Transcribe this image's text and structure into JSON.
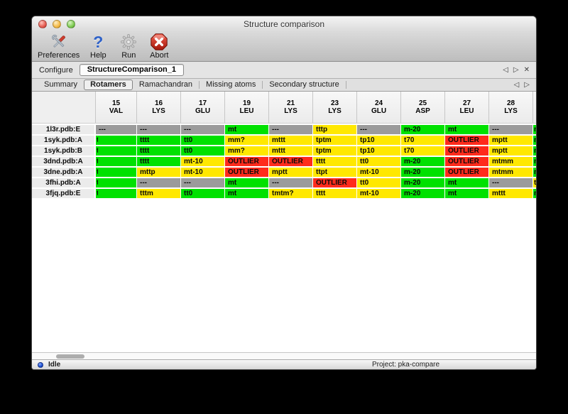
{
  "window_title": "Structure comparison",
  "toolbar": {
    "items": [
      {
        "label": "Preferences"
      },
      {
        "label": "Help"
      },
      {
        "label": "Run"
      },
      {
        "label": "Abort"
      }
    ]
  },
  "configure": {
    "label": "Configure",
    "value": "StructureComparison_1",
    "prev": "◁",
    "next": "▷",
    "close": "✕"
  },
  "tabs": {
    "items": [
      {
        "label": "Summary",
        "selected": false
      },
      {
        "label": "Rotamers",
        "selected": true
      },
      {
        "label": "Ramachandran",
        "selected": false
      },
      {
        "label": "Missing atoms",
        "selected": false
      },
      {
        "label": "Secondary structure",
        "selected": false
      }
    ],
    "prev": "◁",
    "next": "▷"
  },
  "table": {
    "columns": [
      {
        "num": "15",
        "res": "VAL"
      },
      {
        "num": "16",
        "res": "LYS"
      },
      {
        "num": "17",
        "res": "GLU"
      },
      {
        "num": "19",
        "res": "LEU"
      },
      {
        "num": "21",
        "res": "LYS"
      },
      {
        "num": "23",
        "res": "LYS"
      },
      {
        "num": "24",
        "res": "GLU"
      },
      {
        "num": "25",
        "res": "ASP"
      },
      {
        "num": "27",
        "res": "LEU"
      },
      {
        "num": "28",
        "res": "LYS"
      }
    ],
    "rows": [
      {
        "label": "1l3r.pdb:E",
        "cells": [
          {
            "t": "---",
            "c": "gray"
          },
          {
            "t": "---",
            "c": "gray"
          },
          {
            "t": "---",
            "c": "gray"
          },
          {
            "t": "mt",
            "c": "green"
          },
          {
            "t": "---",
            "c": "gray"
          },
          {
            "t": "tttp",
            "c": "yellow"
          },
          {
            "t": "---",
            "c": "gray"
          },
          {
            "t": "m-20",
            "c": "green"
          },
          {
            "t": "mt",
            "c": "green"
          },
          {
            "t": "---",
            "c": "gray"
          }
        ],
        "edge": {
          "t": "m",
          "c": "green"
        }
      },
      {
        "label": "1syk.pdb:A",
        "cells": [
          {
            "t": "t",
            "c": "green",
            "clip": true
          },
          {
            "t": "tttt",
            "c": "green"
          },
          {
            "t": "tt0",
            "c": "green"
          },
          {
            "t": "mm?",
            "c": "yellow"
          },
          {
            "t": "mttt",
            "c": "yellow"
          },
          {
            "t": "tptm",
            "c": "yellow"
          },
          {
            "t": "tp10",
            "c": "yellow"
          },
          {
            "t": "t70",
            "c": "yellow"
          },
          {
            "t": "OUTLIER",
            "c": "red"
          },
          {
            "t": "mptt",
            "c": "yellow"
          }
        ],
        "edge": {
          "t": "m",
          "c": "green"
        }
      },
      {
        "label": "1syk.pdb:B",
        "cells": [
          {
            "t": "t",
            "c": "green",
            "clip": true
          },
          {
            "t": "tttt",
            "c": "green"
          },
          {
            "t": "tt0",
            "c": "green"
          },
          {
            "t": "mm?",
            "c": "yellow"
          },
          {
            "t": "mttt",
            "c": "yellow"
          },
          {
            "t": "tptm",
            "c": "yellow"
          },
          {
            "t": "tp10",
            "c": "yellow"
          },
          {
            "t": "t70",
            "c": "yellow"
          },
          {
            "t": "OUTLIER",
            "c": "red"
          },
          {
            "t": "mptt",
            "c": "yellow"
          }
        ],
        "edge": {
          "t": "m",
          "c": "green"
        }
      },
      {
        "label": "3dnd.pdb:A",
        "cells": [
          {
            "t": "t",
            "c": "green",
            "clip": true
          },
          {
            "t": "tttt",
            "c": "green"
          },
          {
            "t": "mt-10",
            "c": "yellow"
          },
          {
            "t": "OUTLIER",
            "c": "red"
          },
          {
            "t": "OUTLIER",
            "c": "red"
          },
          {
            "t": "tttt",
            "c": "yellow"
          },
          {
            "t": "tt0",
            "c": "yellow"
          },
          {
            "t": "m-20",
            "c": "green"
          },
          {
            "t": "OUTLIER",
            "c": "red"
          },
          {
            "t": "mtmm",
            "c": "yellow"
          }
        ],
        "edge": {
          "t": "m",
          "c": "green"
        }
      },
      {
        "label": "3dne.pdb:A",
        "cells": [
          {
            "t": "t",
            "c": "green",
            "clip": true
          },
          {
            "t": "mttp",
            "c": "yellow"
          },
          {
            "t": "mt-10",
            "c": "yellow"
          },
          {
            "t": "OUTLIER",
            "c": "red"
          },
          {
            "t": "mptt",
            "c": "yellow"
          },
          {
            "t": "ttpt",
            "c": "yellow"
          },
          {
            "t": "mt-10",
            "c": "yellow"
          },
          {
            "t": "m-20",
            "c": "green"
          },
          {
            "t": "OUTLIER",
            "c": "red"
          },
          {
            "t": "mtmm",
            "c": "yellow"
          }
        ],
        "edge": {
          "t": "m",
          "c": "green"
        }
      },
      {
        "label": "3fhi.pdb:A",
        "cells": [
          {
            "t": "t",
            "c": "green",
            "clip": true
          },
          {
            "t": "---",
            "c": "gray"
          },
          {
            "t": "---",
            "c": "gray"
          },
          {
            "t": "mt",
            "c": "green"
          },
          {
            "t": "---",
            "c": "gray"
          },
          {
            "t": "OUTLIER",
            "c": "red"
          },
          {
            "t": "tt0",
            "c": "yellow"
          },
          {
            "t": "m-20",
            "c": "green"
          },
          {
            "t": "mt",
            "c": "green"
          },
          {
            "t": "---",
            "c": "gray"
          }
        ],
        "edge": {
          "t": "t",
          "c": "yellow"
        }
      },
      {
        "label": "3fjq.pdb:E",
        "cells": [
          {
            "t": "t",
            "c": "green",
            "clip": true
          },
          {
            "t": "tttm",
            "c": "yellow"
          },
          {
            "t": "tt0",
            "c": "green"
          },
          {
            "t": "mt",
            "c": "green"
          },
          {
            "t": "tmtm?",
            "c": "yellow"
          },
          {
            "t": "tttt",
            "c": "yellow"
          },
          {
            "t": "mt-10",
            "c": "yellow"
          },
          {
            "t": "m-20",
            "c": "green"
          },
          {
            "t": "mt",
            "c": "green"
          },
          {
            "t": "mttt",
            "c": "yellow"
          }
        ],
        "edge": {
          "t": "m",
          "c": "green"
        }
      }
    ]
  },
  "status": {
    "label": "Idle",
    "project": "Project: pka-compare"
  },
  "colors": {
    "green": "#00e100",
    "yellow": "#ffe800",
    "red": "#ff2b1c",
    "gray": "#9b9b9b"
  }
}
